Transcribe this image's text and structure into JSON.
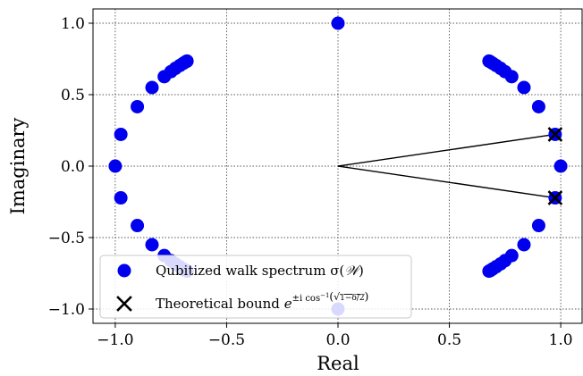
{
  "chart_data": {
    "type": "scatter",
    "xlabel": "Real",
    "ylabel": "Imaginary",
    "xlim": [
      -1.1,
      1.1
    ],
    "ylim": [
      -1.1,
      1.1
    ],
    "xticks": [
      -1.0,
      -0.5,
      0.0,
      0.5,
      1.0
    ],
    "yticks": [
      -1.0,
      -0.5,
      0.0,
      0.5,
      1.0
    ],
    "xtick_labels": [
      "−1.0",
      "−0.5",
      "0.0",
      "0.5",
      "1.0"
    ],
    "ytick_labels": [
      "−1.0",
      "−0.5",
      "0.0",
      "0.5",
      "1.0"
    ],
    "grid": true,
    "legend_position": "lower-center",
    "colors": {
      "spectrum": "#0000ee",
      "bound": "#000000"
    },
    "series": [
      {
        "name": "Qubitized walk spectrum σ(𝒲)",
        "marker": "circle",
        "points": [
          [
            0.0,
            1.0
          ],
          [
            0.0,
            -1.0
          ],
          [
            1.0,
            0.0
          ],
          [
            0.975,
            0.222
          ],
          [
            0.975,
            -0.222
          ],
          [
            0.901,
            0.416
          ],
          [
            0.901,
            -0.416
          ],
          [
            0.835,
            0.55
          ],
          [
            0.835,
            -0.55
          ],
          [
            0.78,
            0.626
          ],
          [
            0.78,
            -0.626
          ],
          [
            0.75,
            0.661
          ],
          [
            0.75,
            -0.661
          ],
          [
            0.73,
            0.684
          ],
          [
            0.73,
            -0.684
          ],
          [
            0.71,
            0.704
          ],
          [
            0.71,
            -0.704
          ],
          [
            0.695,
            0.719
          ],
          [
            0.695,
            -0.719
          ],
          [
            0.685,
            0.729
          ],
          [
            0.685,
            -0.729
          ],
          [
            0.678,
            0.735
          ],
          [
            0.678,
            -0.735
          ],
          [
            -1.0,
            0.0
          ],
          [
            -0.975,
            0.222
          ],
          [
            -0.975,
            -0.222
          ],
          [
            -0.901,
            0.416
          ],
          [
            -0.901,
            -0.416
          ],
          [
            -0.835,
            0.55
          ],
          [
            -0.835,
            -0.55
          ],
          [
            -0.78,
            0.626
          ],
          [
            -0.78,
            -0.626
          ],
          [
            -0.75,
            0.661
          ],
          [
            -0.75,
            -0.661
          ],
          [
            -0.73,
            0.684
          ],
          [
            -0.73,
            -0.684
          ],
          [
            -0.71,
            0.704
          ],
          [
            -0.71,
            -0.704
          ],
          [
            -0.695,
            0.719
          ],
          [
            -0.695,
            -0.719
          ],
          [
            -0.685,
            0.729
          ],
          [
            -0.685,
            -0.729
          ],
          [
            -0.678,
            0.735
          ],
          [
            -0.678,
            -0.735
          ]
        ]
      },
      {
        "name": "Theoretical bound e^{±i cos⁻¹(√(1−δ/2))}",
        "marker": "x",
        "points": [
          [
            0.975,
            0.222
          ],
          [
            0.975,
            -0.222
          ]
        ]
      }
    ],
    "lines": [
      {
        "from": [
          0.0,
          0.0
        ],
        "to": [
          0.975,
          0.222
        ]
      },
      {
        "from": [
          0.0,
          0.0
        ],
        "to": [
          0.975,
          -0.222
        ]
      }
    ],
    "legend": {
      "entry1_text": "Qubitized walk spectrum σ(",
      "entry1_sym": "𝒲",
      "entry1_close": ")",
      "entry2_text": "Theoretical bound ",
      "entry2_base": "e",
      "entry2_exp_pre": "±i cos",
      "entry2_exp_inv": "−1",
      "entry2_exp_sqrt": "√",
      "entry2_exp_arg": "1−δ/2"
    }
  }
}
